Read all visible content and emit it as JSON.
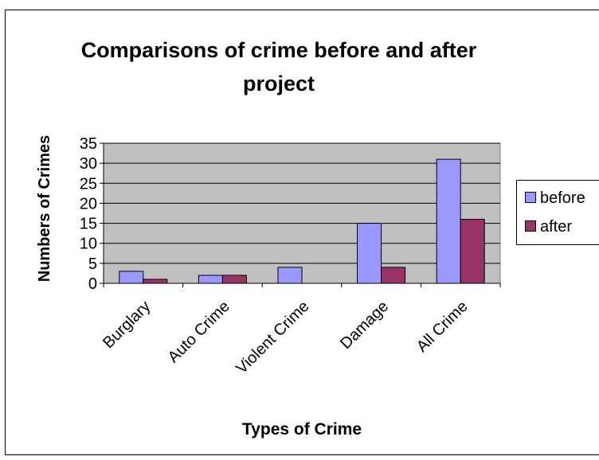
{
  "chart_data": {
    "type": "bar",
    "title_lines": [
      "Comparisons of crime before and after",
      "project"
    ],
    "xlabel": "Types of Crime",
    "ylabel": "Numbers of Crimes",
    "categories": [
      "Burglary",
      "Auto Crime",
      "Violent Crime",
      "Damage",
      "All Crime"
    ],
    "series": [
      {
        "name": "before",
        "values": [
          3,
          2,
          4,
          15,
          31
        ],
        "color": "#9999FF"
      },
      {
        "name": "after",
        "values": [
          1,
          2,
          0,
          4,
          16
        ],
        "color": "#993366"
      }
    ],
    "ylim": [
      0,
      35
    ],
    "yticks": [
      0,
      5,
      10,
      15,
      20,
      25,
      30,
      35
    ],
    "grid": true,
    "legend_position": "right",
    "plot_background": "#C0C0C0"
  }
}
